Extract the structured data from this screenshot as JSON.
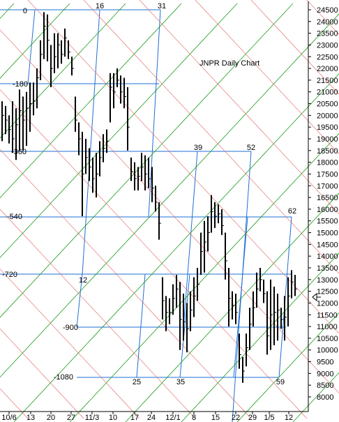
{
  "chart_data": {
    "type": "ohlc",
    "title": "JNPR Daily Chart",
    "xlabel": "",
    "ylabel": "",
    "ylim": [
      7500,
      24800
    ],
    "y_ticks": [
      8000,
      8500,
      9000,
      9500,
      10000,
      10500,
      11000,
      11500,
      12000,
      12500,
      13000,
      13500,
      14000,
      14500,
      15000,
      15500,
      16000,
      16500,
      17000,
      17500,
      18000,
      18500,
      19000,
      19500,
      20000,
      20500,
      21000,
      21500,
      22000,
      22500,
      23000,
      23500,
      24000,
      24500
    ],
    "x_tick_labels": [
      "10/6",
      "13",
      "20",
      "27",
      "11/3",
      "10",
      "17",
      "24",
      "12/1",
      "8",
      "15",
      "22",
      "29",
      "1/5",
      "12"
    ],
    "grid_levels": [
      {
        "label": "0",
        "price": 24650
      },
      {
        "label": "-180",
        "price": 21450
      },
      {
        "label": "-360",
        "price": 18450
      },
      {
        "label": "-540",
        "price": 15700
      },
      {
        "label": "-720",
        "price": 13200
      },
      {
        "label": "-900",
        "price": 11000
      },
      {
        "label": "-1080",
        "price": 8850
      }
    ],
    "grid_time_labels": [
      "16",
      "31",
      "39",
      "52",
      "62",
      "12",
      "25",
      "35",
      "59"
    ],
    "series": [
      {
        "bars": [
          {
            "x": 0,
            "h": 20600,
            "l": 18900,
            "c": 20000
          },
          {
            "x": 1,
            "h": 20400,
            "l": 19200,
            "c": 19800
          },
          {
            "x": 2,
            "h": 20000,
            "l": 18800,
            "c": 19400
          },
          {
            "x": 3,
            "h": 20600,
            "l": 18400,
            "c": 19000
          },
          {
            "x": 4,
            "h": 20300,
            "l": 18100,
            "c": 19600
          },
          {
            "x": 5,
            "h": 21100,
            "l": 18500,
            "c": 20200
          },
          {
            "x": 6,
            "h": 20800,
            "l": 18500,
            "c": 19800
          },
          {
            "x": 7,
            "h": 21000,
            "l": 18700,
            "c": 20300
          },
          {
            "x": 8,
            "h": 21400,
            "l": 19300,
            "c": 20500
          },
          {
            "x": 9,
            "h": 21400,
            "l": 20000,
            "c": 20600
          },
          {
            "x": 10,
            "h": 22000,
            "l": 20300,
            "c": 21600
          },
          {
            "x": 11,
            "h": 23200,
            "l": 21500,
            "c": 22600
          },
          {
            "x": 12,
            "h": 24400,
            "l": 22400,
            "c": 23800
          },
          {
            "x": 13,
            "h": 24300,
            "l": 22300,
            "c": 23200
          },
          {
            "x": 14,
            "h": 23000,
            "l": 21200,
            "c": 22000
          },
          {
            "x": 15,
            "h": 23500,
            "l": 21800,
            "c": 22500
          },
          {
            "x": 16,
            "h": 23500,
            "l": 22000,
            "c": 23000
          },
          {
            "x": 17,
            "h": 23200,
            "l": 22200,
            "c": 22600
          },
          {
            "x": 18,
            "h": 23700,
            "l": 22500,
            "c": 23300
          },
          {
            "x": 19,
            "h": 23200,
            "l": 22400,
            "c": 22700
          },
          {
            "x": 20,
            "h": 22500,
            "l": 21700,
            "c": 22000
          },
          {
            "x": 21,
            "h": 20800,
            "l": 19300,
            "c": 19800
          },
          {
            "x": 22,
            "h": 19700,
            "l": 18300,
            "c": 19000
          },
          {
            "x": 23,
            "h": 19300,
            "l": 15700,
            "c": 17500
          },
          {
            "x": 24,
            "h": 19000,
            "l": 17500,
            "c": 18200
          },
          {
            "x": 25,
            "h": 18600,
            "l": 17200,
            "c": 17800
          },
          {
            "x": 26,
            "h": 18200,
            "l": 16700,
            "c": 17300
          },
          {
            "x": 27,
            "h": 18400,
            "l": 16500,
            "c": 17500
          },
          {
            "x": 28,
            "h": 18900,
            "l": 17400,
            "c": 18200
          },
          {
            "x": 29,
            "h": 19200,
            "l": 18000,
            "c": 18600
          },
          {
            "x": 30,
            "h": 19400,
            "l": 18400,
            "c": 18900
          },
          {
            "x": 31,
            "h": 21800,
            "l": 19700,
            "c": 21200
          },
          {
            "x": 32,
            "h": 21800,
            "l": 20300,
            "c": 21000
          },
          {
            "x": 33,
            "h": 22000,
            "l": 21200,
            "c": 21500
          },
          {
            "x": 34,
            "h": 21700,
            "l": 20500,
            "c": 21000
          },
          {
            "x": 35,
            "h": 21600,
            "l": 20300,
            "c": 20800
          },
          {
            "x": 36,
            "h": 21200,
            "l": 18500,
            "c": 19500
          },
          {
            "x": 37,
            "h": 18200,
            "l": 17200,
            "c": 17600
          },
          {
            "x": 38,
            "h": 18000,
            "l": 16800,
            "c": 17300
          },
          {
            "x": 39,
            "h": 17800,
            "l": 16800,
            "c": 17400
          },
          {
            "x": 40,
            "h": 18400,
            "l": 17200,
            "c": 17800
          },
          {
            "x": 41,
            "h": 18300,
            "l": 16800,
            "c": 17500
          },
          {
            "x": 42,
            "h": 18200,
            "l": 16900,
            "c": 17300
          },
          {
            "x": 43,
            "h": 17800,
            "l": 16300,
            "c": 16900
          },
          {
            "x": 44,
            "h": 17000,
            "l": 15900,
            "c": 16300
          },
          {
            "x": 45,
            "h": 16300,
            "l": 14700,
            "c": 15400
          },
          {
            "x": 46,
            "h": 13100,
            "l": 11300,
            "c": 12100
          },
          {
            "x": 47,
            "h": 12300,
            "l": 10800,
            "c": 11600
          },
          {
            "x": 48,
            "h": 12200,
            "l": 11100,
            "c": 11600
          },
          {
            "x": 49,
            "h": 12800,
            "l": 11500,
            "c": 12200
          },
          {
            "x": 50,
            "h": 13200,
            "l": 11800,
            "c": 12600
          },
          {
            "x": 51,
            "h": 12900,
            "l": 10000,
            "c": 11300
          },
          {
            "x": 52,
            "h": 12400,
            "l": 10400,
            "c": 11200
          },
          {
            "x": 53,
            "h": 12000,
            "l": 9900,
            "c": 10900
          },
          {
            "x": 54,
            "h": 12500,
            "l": 10800,
            "c": 11700
          },
          {
            "x": 55,
            "h": 13100,
            "l": 11400,
            "c": 12300
          },
          {
            "x": 56,
            "h": 13500,
            "l": 12100,
            "c": 12800
          },
          {
            "x": 57,
            "h": 15000,
            "l": 13200,
            "c": 14200
          },
          {
            "x": 58,
            "h": 15500,
            "l": 13300,
            "c": 14600
          },
          {
            "x": 59,
            "h": 15700,
            "l": 14200,
            "c": 15000
          },
          {
            "x": 60,
            "h": 16600,
            "l": 15000,
            "c": 15900
          },
          {
            "x": 61,
            "h": 16300,
            "l": 15200,
            "c": 15700
          },
          {
            "x": 62,
            "h": 16200,
            "l": 15400,
            "c": 15800
          },
          {
            "x": 63,
            "h": 16000,
            "l": 14900,
            "c": 15300
          },
          {
            "x": 64,
            "h": 15000,
            "l": 13000,
            "c": 13800
          },
          {
            "x": 65,
            "h": 13500,
            "l": 11000,
            "c": 12200
          },
          {
            "x": 66,
            "h": 12500,
            "l": 11300,
            "c": 11900
          },
          {
            "x": 67,
            "h": 12400,
            "l": 11100,
            "c": 11600
          },
          {
            "x": 68,
            "h": 10700,
            "l": 9200,
            "c": 9800
          },
          {
            "x": 69,
            "h": 9700,
            "l": 8600,
            "c": 9100
          },
          {
            "x": 70,
            "h": 10700,
            "l": 9300,
            "c": 10100
          },
          {
            "x": 71,
            "h": 11800,
            "l": 10000,
            "c": 11100
          },
          {
            "x": 72,
            "h": 12500,
            "l": 11000,
            "c": 11800
          },
          {
            "x": 73,
            "h": 13300,
            "l": 11800,
            "c": 12600
          },
          {
            "x": 74,
            "h": 13500,
            "l": 12500,
            "c": 13000
          },
          {
            "x": 75,
            "h": 13000,
            "l": 12000,
            "c": 12400
          },
          {
            "x": 76,
            "h": 12500,
            "l": 9800,
            "c": 10600
          },
          {
            "x": 77,
            "h": 13000,
            "l": 10000,
            "c": 11500
          },
          {
            "x": 78,
            "h": 12700,
            "l": 10200,
            "c": 11600
          },
          {
            "x": 79,
            "h": 12400,
            "l": 10400,
            "c": 11700
          },
          {
            "x": 80,
            "h": 11800,
            "l": 10900,
            "c": 11300
          },
          {
            "x": 81,
            "h": 12300,
            "l": 10400,
            "c": 11400
          },
          {
            "x": 82,
            "h": 13100,
            "l": 11000,
            "c": 12300
          },
          {
            "x": 83,
            "h": 13400,
            "l": 12200,
            "c": 12900
          },
          {
            "x": 84,
            "h": 13200,
            "l": 12300,
            "c": 12600
          }
        ]
      }
    ],
    "legend": "none",
    "grid": false
  }
}
